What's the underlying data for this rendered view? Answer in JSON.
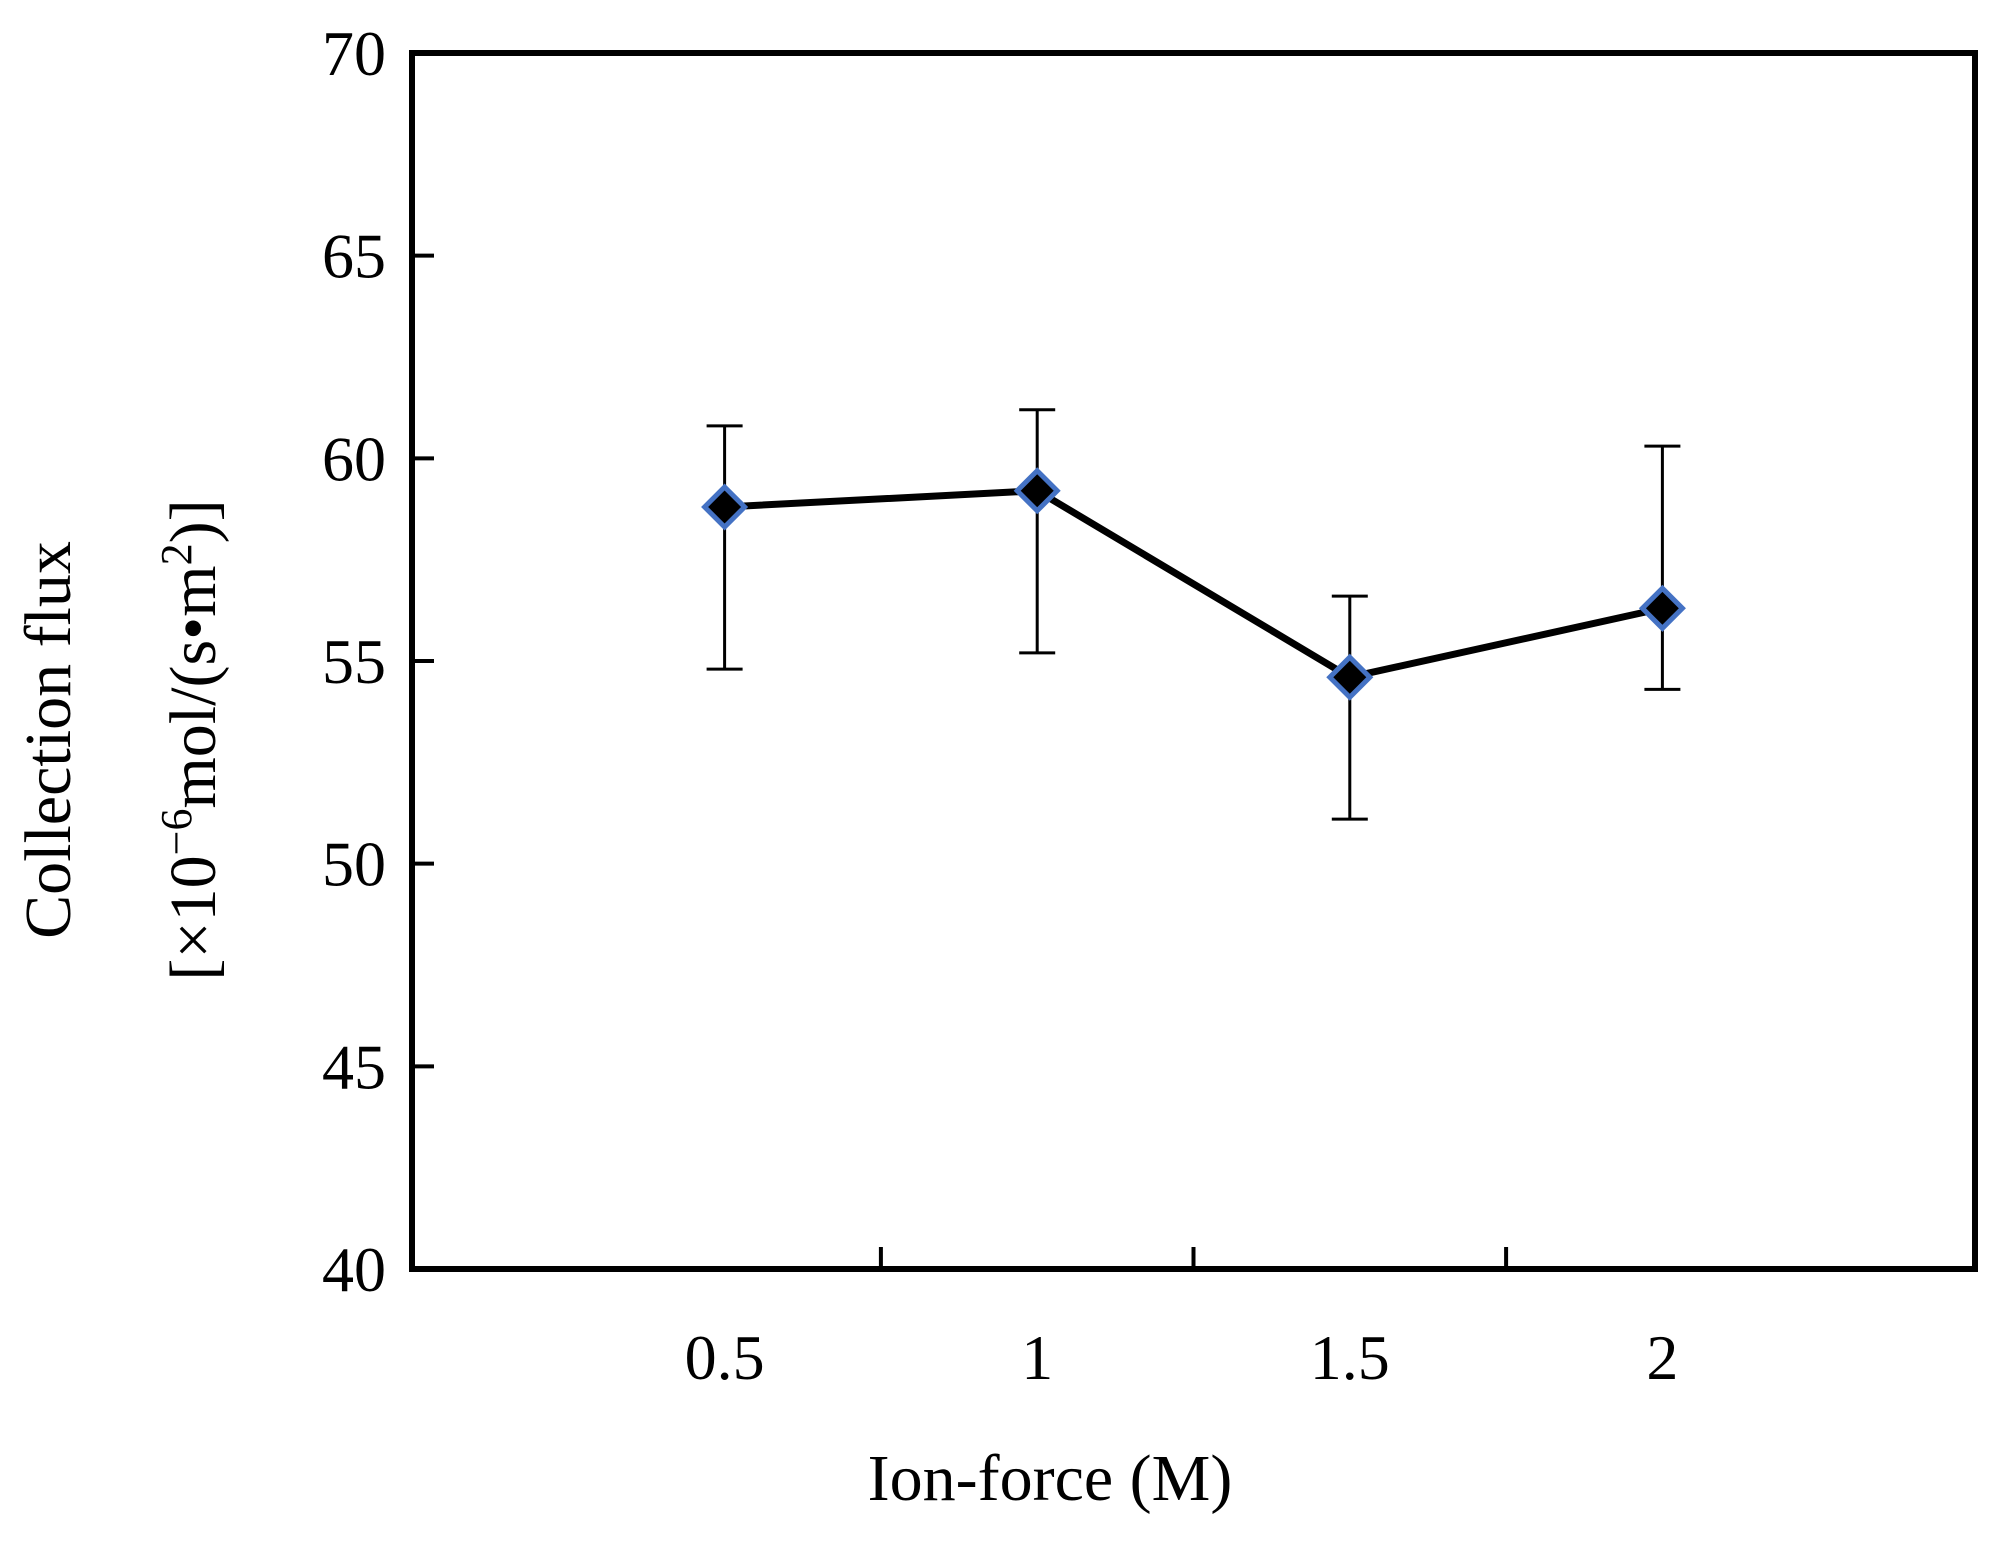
{
  "chart_data": {
    "type": "line",
    "title": "",
    "xlabel": "Ion-force (M)",
    "ylabel_line1": "Collection flux",
    "ylabel_line2_prefix": "[×10",
    "ylabel_line2_exp": "−6",
    "ylabel_line2_mid": "mol/(s•m",
    "ylabel_line2_exp2": "2",
    "ylabel_line2_suffix": ")]",
    "categories": [
      "0.5",
      "1",
      "1.5",
      "2"
    ],
    "x_ticks_minor_between": true,
    "ylim": [
      40,
      70
    ],
    "y_ticks": [
      "40",
      "45",
      "50",
      "55",
      "60",
      "65",
      "70"
    ],
    "grid": false,
    "series": [
      {
        "name": "Collection flux",
        "values": [
          58.8,
          59.2,
          54.6,
          56.3
        ],
        "error_upper": [
          60.8,
          61.2,
          56.6,
          60.3
        ],
        "error_lower": [
          54.8,
          55.2,
          51.1,
          54.3
        ],
        "marker": "diamond",
        "marker_fill": "#000000",
        "marker_edge": "#4472C4",
        "line_color": "#000000"
      }
    ]
  }
}
